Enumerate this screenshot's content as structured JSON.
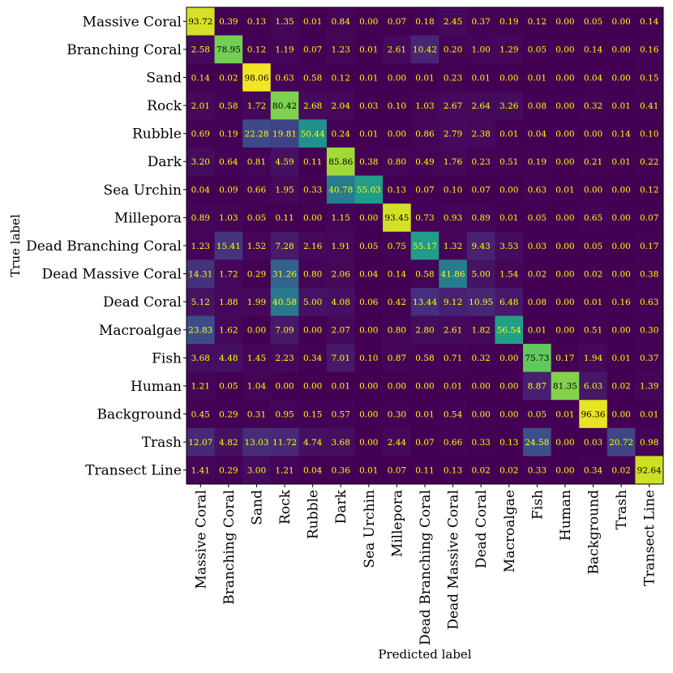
{
  "chart_data": {
    "type": "heatmap",
    "title": "",
    "xlabel": "Predicted label",
    "ylabel": "True label",
    "colormap": "viridis",
    "value_range": [
      0,
      100
    ],
    "colors": {
      "text_light": "#ffff00",
      "text_dark": "#000000",
      "frame": "#000000"
    },
    "row_labels": [
      "Massive Coral",
      "Branching Coral",
      "Sand",
      "Rock",
      "Rubble",
      "Dark",
      "Sea Urchin",
      "Millepora",
      "Dead Branching Coral",
      "Dead Massive Coral",
      "Dead Coral",
      "Macroalgae",
      "Fish",
      "Human",
      "Background",
      "Trash",
      "Transect Line"
    ],
    "col_labels": [
      "Massive Coral",
      "Branching Coral",
      "Sand",
      "Rock",
      "Rubble",
      "Dark",
      "Sea Urchin",
      "Millepora",
      "Dead Branching Coral",
      "Dead Massive Coral",
      "Dead Coral",
      "Macroalgae",
      "Fish",
      "Human",
      "Background",
      "Trash",
      "Transect Line"
    ],
    "values": [
      [
        "93.72",
        "0.39",
        "0.13",
        "1.35",
        "0.01",
        "0.84",
        "0.00",
        "0.07",
        "0.18",
        "2.45",
        "0.37",
        "0.19",
        "0.12",
        "0.00",
        "0.05",
        "0.00",
        "0.14"
      ],
      [
        "2.58",
        "78.95",
        "0.12",
        "1.19",
        "0.07",
        "1.23",
        "0.01",
        "2.61",
        "10.42",
        "0.20",
        "1.00",
        "1.29",
        "0.05",
        "0.00",
        "0.14",
        "0.00",
        "0.16"
      ],
      [
        "0.14",
        "0.02",
        "98.06",
        "0.63",
        "0.58",
        "0.12",
        "0.01",
        "0.00",
        "0.01",
        "0.23",
        "0.01",
        "0.00",
        "0.01",
        "0.00",
        "0.04",
        "0.00",
        "0.15"
      ],
      [
        "2.01",
        "0.58",
        "1.72",
        "80.42",
        "2.68",
        "2.04",
        "0.03",
        "0.10",
        "1.03",
        "2.67",
        "2.64",
        "3.26",
        "0.08",
        "0.00",
        "0.32",
        "0.01",
        "0.41"
      ],
      [
        "0.69",
        "0.19",
        "22.28",
        "19.81",
        "50.44",
        "0.24",
        "0.01",
        "0.00",
        "0.86",
        "2.79",
        "2.38",
        "0.01",
        "0.04",
        "0.00",
        "0.00",
        "0.14",
        "0.10"
      ],
      [
        "3.20",
        "0.64",
        "0.81",
        "4.59",
        "0.11",
        "85.86",
        "0.38",
        "0.80",
        "0.49",
        "1.76",
        "0.23",
        "0.51",
        "0.19",
        "0.00",
        "0.21",
        "0.01",
        "0.22"
      ],
      [
        "0.04",
        "0.09",
        "0.66",
        "1.95",
        "0.33",
        "40.78",
        "55.03",
        "0.13",
        "0.07",
        "0.10",
        "0.07",
        "0.00",
        "0.63",
        "0.01",
        "0.00",
        "0.00",
        "0.12"
      ],
      [
        "0.89",
        "1.03",
        "0.05",
        "0.11",
        "0.00",
        "1.15",
        "0.00",
        "93.45",
        "0.73",
        "0.93",
        "0.89",
        "0.01",
        "0.05",
        "0.00",
        "0.65",
        "0.00",
        "0.07"
      ],
      [
        "1.23",
        "15.41",
        "1.52",
        "7.28",
        "2.16",
        "1.91",
        "0.05",
        "0.75",
        "55.17",
        "1.32",
        "9.43",
        "3.53",
        "0.03",
        "0.00",
        "0.05",
        "0.00",
        "0.17"
      ],
      [
        "14.31",
        "1.72",
        "0.29",
        "31.26",
        "0.80",
        "2.06",
        "0.04",
        "0.14",
        "0.58",
        "41.86",
        "5.00",
        "1.54",
        "0.02",
        "0.00",
        "0.02",
        "0.00",
        "0.38"
      ],
      [
        "5.12",
        "1.88",
        "1.99",
        "40.58",
        "5.00",
        "4.08",
        "0.06",
        "0.42",
        "13.44",
        "9.12",
        "10.95",
        "6.48",
        "0.08",
        "0.00",
        "0.01",
        "0.16",
        "0.63"
      ],
      [
        "23.83",
        "1.62",
        "0.00",
        "7.09",
        "0.00",
        "2.07",
        "0.00",
        "0.80",
        "2.80",
        "2.61",
        "1.82",
        "56.54",
        "0.01",
        "0.00",
        "0.51",
        "0.00",
        "0.30"
      ],
      [
        "3.68",
        "4.48",
        "1.45",
        "2.23",
        "0.34",
        "7.01",
        "0.10",
        "0.87",
        "0.58",
        "0.71",
        "0.32",
        "0.00",
        "75.73",
        "0.17",
        "1.94",
        "0.01",
        "0.37"
      ],
      [
        "1.21",
        "0.05",
        "1.04",
        "0.00",
        "0.00",
        "0.01",
        "0.00",
        "0.00",
        "0.00",
        "0.01",
        "0.00",
        "0.00",
        "8.87",
        "81.35",
        "6.03",
        "0.02",
        "1.39"
      ],
      [
        "0.45",
        "0.29",
        "0.31",
        "0.95",
        "0.15",
        "0.57",
        "0.00",
        "0.30",
        "0.01",
        "0.54",
        "0.00",
        "0.00",
        "0.05",
        "0.01",
        "96.36",
        "0.00",
        "0.01"
      ],
      [
        "12.07",
        "4.82",
        "13.03",
        "11.72",
        "4.74",
        "3.68",
        "0.00",
        "2.44",
        "0.07",
        "0.66",
        "0.33",
        "0.13",
        "24.58",
        "0.00",
        "0.03",
        "20.72",
        "0.98"
      ],
      [
        "1.41",
        "0.29",
        "3.00",
        "1.21",
        "0.04",
        "0.36",
        "0.01",
        "0.07",
        "0.11",
        "0.13",
        "0.02",
        "0.02",
        "0.33",
        "0.00",
        "0.34",
        "0.02",
        "92.64"
      ]
    ]
  }
}
